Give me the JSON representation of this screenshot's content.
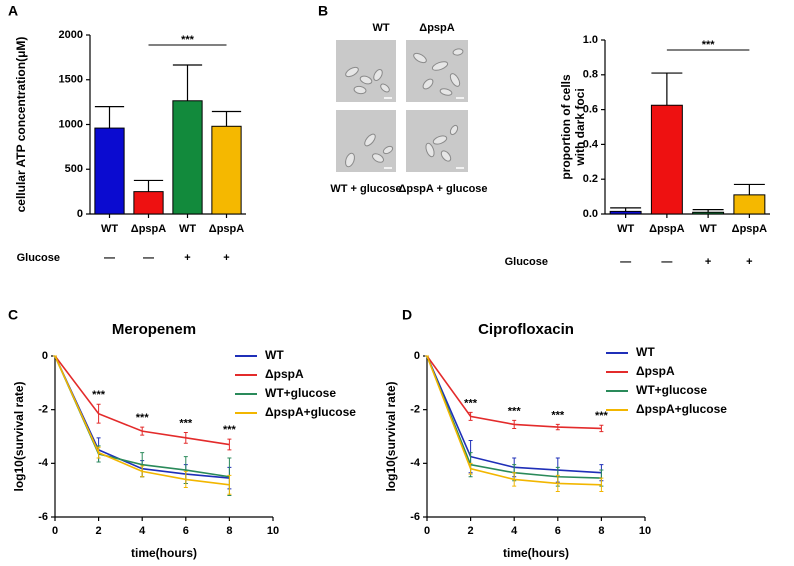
{
  "chart_data": [
    {
      "type": "bar",
      "panel": "A",
      "ylabel": [
        "cellular ATP concentration(μM)"
      ],
      "categories": [
        "WT",
        "ΔpspA",
        "WT",
        "ΔpspA"
      ],
      "values": [
        960,
        250,
        1265,
        980
      ],
      "errors": [
        240,
        125,
        400,
        165
      ],
      "colors": [
        "#0b0bd0",
        "#ee1111",
        "#128a3c",
        "#f5b800"
      ],
      "ylim": [
        0,
        2000
      ],
      "yticks": [
        0,
        500,
        1000,
        1500,
        2000
      ],
      "row_label": "Glucose",
      "row_values": [
        "—",
        "—",
        "+",
        "+"
      ],
      "significance": "***"
    },
    {
      "type": "bar",
      "panel": "B",
      "ylabel": [
        "proportion of cells",
        "with dark foci"
      ],
      "image_labels": [
        "WT",
        "ΔpspA",
        "WT + glucose",
        "ΔpspA + glucose"
      ],
      "categories": [
        "WT",
        "ΔpspA",
        "WT",
        "ΔpspA"
      ],
      "values": [
        0.015,
        0.625,
        0.01,
        0.11
      ],
      "errors": [
        0.02,
        0.185,
        0.015,
        0.06
      ],
      "colors": [
        "#0b0bd0",
        "#ee1111",
        "#128a3c",
        "#f5b800"
      ],
      "ylim": [
        0,
        1
      ],
      "yticks": [
        {
          "value": 0,
          "label": "0.0"
        },
        0.2,
        0.4,
        0.6,
        0.8,
        {
          "value": 1,
          "label": "1.0"
        }
      ],
      "row_label": "Glucose",
      "row_values": [
        "—",
        "—",
        "+",
        "+"
      ],
      "significance": "***"
    },
    {
      "type": "line",
      "panel": "C",
      "title": "Meropenem",
      "xlabel": "time(hours)",
      "ylabel": [
        "log10(survival rate)"
      ],
      "x": [
        0,
        2,
        4,
        6,
        8
      ],
      "xlim": [
        0,
        10
      ],
      "xticks": [
        0,
        2,
        4,
        6,
        8,
        10
      ],
      "ylim": [
        -6,
        0
      ],
      "yticks": [
        -6,
        -4,
        -2,
        0
      ],
      "significance": [
        null,
        "***",
        "***",
        "***",
        "***"
      ],
      "series": [
        {
          "name": "WT",
          "color": "#1f2fb8",
          "values": [
            0,
            -3.5,
            -4.2,
            -4.4,
            -4.55
          ],
          "errors": [
            0,
            0.45,
            0.3,
            0.35,
            0.4
          ]
        },
        {
          "name": "ΔpspA",
          "color": "#e32b2b",
          "values": [
            0,
            -2.15,
            -2.8,
            -3.05,
            -3.3
          ],
          "errors": [
            0,
            0.35,
            0.15,
            0.2,
            0.2
          ]
        },
        {
          "name": "WT+glucose",
          "color": "#2a8a5a",
          "values": [
            0,
            -3.65,
            -4.05,
            -4.25,
            -4.5
          ],
          "errors": [
            0,
            0.3,
            0.45,
            0.5,
            0.7
          ]
        },
        {
          "name": "ΔpspA+glucose",
          "color": "#f2b600",
          "values": [
            0,
            -3.6,
            -4.3,
            -4.6,
            -4.8
          ],
          "errors": [
            0,
            0.2,
            0.2,
            0.3,
            0.35
          ]
        }
      ]
    },
    {
      "type": "line",
      "panel": "D",
      "title": "Ciprofloxacin",
      "xlabel": "time(hours)",
      "ylabel": [
        "log10(survival rate)"
      ],
      "x": [
        0,
        2,
        4,
        6,
        8
      ],
      "xlim": [
        0,
        10
      ],
      "xticks": [
        0,
        2,
        4,
        6,
        8,
        10
      ],
      "ylim": [
        -6,
        0
      ],
      "yticks": [
        -6,
        -4,
        -2,
        0
      ],
      "significance": [
        null,
        "***",
        "***",
        "***",
        "***"
      ],
      "series": [
        {
          "name": "WT",
          "color": "#1f2fb8",
          "values": [
            0,
            -3.75,
            -4.15,
            -4.25,
            -4.35
          ],
          "errors": [
            0,
            0.6,
            0.35,
            0.45,
            0.3
          ]
        },
        {
          "name": "ΔpspA",
          "color": "#e32b2b",
          "values": [
            0,
            -2.25,
            -2.55,
            -2.65,
            -2.7
          ],
          "errors": [
            0,
            0.15,
            0.15,
            0.1,
            0.12
          ]
        },
        {
          "name": "WT+glucose",
          "color": "#2a8a5a",
          "values": [
            0,
            -4.05,
            -4.35,
            -4.5,
            -4.55
          ],
          "errors": [
            0,
            0.45,
            0.3,
            0.35,
            0.3
          ]
        },
        {
          "name": "ΔpspA+glucose",
          "color": "#f2b600",
          "values": [
            0,
            -4.2,
            -4.6,
            -4.75,
            -4.8
          ],
          "errors": [
            0,
            0.2,
            0.25,
            0.3,
            0.25
          ]
        }
      ]
    }
  ]
}
